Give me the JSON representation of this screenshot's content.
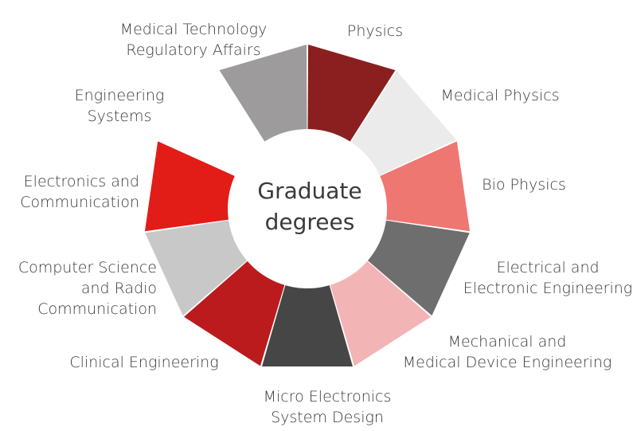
{
  "center": {
    "line1": "Graduate",
    "line2": "degrees"
  },
  "segments": [
    {
      "lines": [
        "Physics"
      ],
      "color": "#8b1f1f"
    },
    {
      "lines": [
        "Medical Physics"
      ],
      "color": "#ebebeb"
    },
    {
      "lines": [
        "Bio Physics"
      ],
      "color": "#ef7772"
    },
    {
      "lines": [
        "Electrical and",
        "Electronic Engineering"
      ],
      "color": "#6e6e6e"
    },
    {
      "lines": [
        "Mechanical and",
        "Medical Device Engineering"
      ],
      "color": "#f3b4b5"
    },
    {
      "lines": [
        "Micro Electronics",
        "System Design"
      ],
      "color": "#464646"
    },
    {
      "lines": [
        "Clinical Engineering"
      ],
      "color": "#bb1b1d"
    },
    {
      "lines": [
        "Computer Science",
        "and Radio",
        "Communication"
      ],
      "color": "#c8c8c8"
    },
    {
      "lines": [
        "Electronics and",
        "Communication"
      ],
      "color": "#e21c17"
    },
    {
      "lines": [
        "Engineering",
        "Systems"
      ],
      "color": "#ffffff"
    },
    {
      "lines": [
        "Medical Technology",
        "Regulatory Affairs"
      ],
      "color": "#9d9b9b"
    }
  ]
}
